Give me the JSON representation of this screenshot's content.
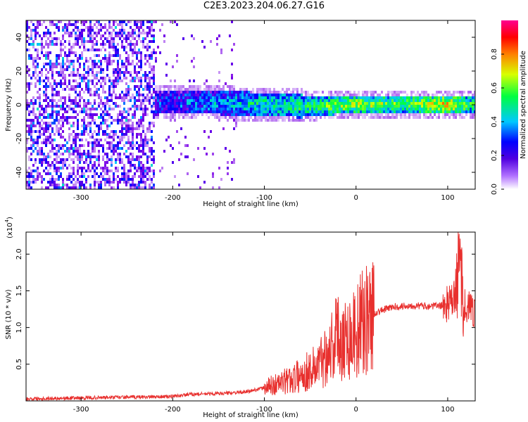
{
  "title": "C2E3.2023.204.06.27.G16",
  "chart_data": [
    {
      "type": "heatmap",
      "xlabel": "Height of straight line (km)",
      "ylabel": "Frequency (Hz)",
      "xlim": [
        -360,
        130
      ],
      "ylim": [
        -50,
        50
      ],
      "xticks": [
        -300,
        -200,
        -100,
        0,
        100
      ],
      "yticks": [
        -40,
        -20,
        0,
        20,
        40
      ],
      "colorbar": {
        "label": "Normalized spectral amplitude",
        "range": [
          0.0,
          1.0
        ],
        "ticks": [
          "0.0",
          "0.2",
          "0.4",
          "0.6",
          "0.8"
        ],
        "colors": [
          "#ffffff",
          "#7a00e6",
          "#0000ff",
          "#00c8ff",
          "#00ff40",
          "#d8ff00",
          "#ff8000",
          "#ff0000",
          "#ff0090"
        ]
      },
      "description_points": [
        {
          "x": -300,
          "band_center": 0,
          "amplitude": 0.1
        },
        {
          "x": -215,
          "band_center": 2,
          "amplitude": 0.25
        },
        {
          "x": -150,
          "band_center": 2,
          "amplitude": 0.35
        },
        {
          "x": -100,
          "band_center": 1,
          "amplitude": 0.45
        },
        {
          "x": -50,
          "band_center": 0,
          "amplitude": 0.5
        },
        {
          "x": 0,
          "band_center": 1,
          "amplitude": 0.6
        },
        {
          "x": 50,
          "band_center": 1,
          "amplitude": 0.55
        },
        {
          "x": 100,
          "band_center": 1,
          "amplitude": 0.7
        },
        {
          "x": 125,
          "band_center": 1,
          "amplitude": 0.5
        }
      ]
    },
    {
      "type": "line",
      "xlabel": "Height of straight line (km)",
      "ylabel": "SNR (10 * v/v)",
      "ymultiplier": "(x10",
      "ymultiplier_exp": "4",
      "xlim": [
        -360,
        130
      ],
      "ylim": [
        0,
        23000
      ],
      "xticks": [
        -300,
        -200,
        -100,
        0,
        100
      ],
      "yticks": [
        "0.5",
        "1.0",
        "1.5",
        "2.0"
      ],
      "color": "#e8302e",
      "x": [
        -360,
        -300,
        -250,
        -200,
        -180,
        -150,
        -120,
        -100,
        -80,
        -60,
        -40,
        -30,
        -20,
        -10,
        0,
        10,
        20,
        40,
        60,
        80,
        95,
        105,
        110,
        113,
        118,
        125,
        130
      ],
      "values": [
        300,
        400,
        500,
        600,
        900,
        1000,
        1200,
        1800,
        2500,
        3500,
        5000,
        7000,
        9000,
        8500,
        9500,
        11000,
        12000,
        12800,
        13000,
        12900,
        13000,
        13500,
        15000,
        20000,
        13000,
        12500,
        12500
      ]
    }
  ]
}
